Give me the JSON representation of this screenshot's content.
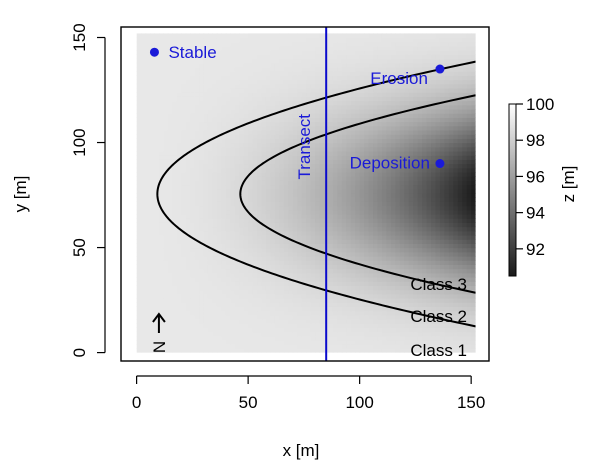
{
  "chart_data": {
    "type": "heatmap",
    "xlabel": "x [m]",
    "ylabel": "y [m]",
    "xlim": [
      -7,
      158
    ],
    "ylim": [
      -4,
      155
    ],
    "x_ticks": [
      0,
      50,
      100,
      150
    ],
    "y_ticks": [
      0,
      50,
      100,
      150
    ],
    "x_domain": [
      0,
      152
    ],
    "y_domain": [
      0,
      152
    ],
    "z_range": [
      90.5,
      100
    ],
    "colorbar": {
      "label": "z [m]",
      "ticks": [
        92,
        94,
        96,
        98,
        100
      ],
      "range": [
        90.5,
        100
      ],
      "low_color": "#1a1a1a",
      "high_color": "#ffffff"
    },
    "contours": [
      {
        "x_vertex": 9.3,
        "y_center": 75.5,
        "half_height_at_edge": 63,
        "label": "Class 2",
        "label_position": "bottom-right"
      },
      {
        "x_vertex": 46.5,
        "y_center": 75.5,
        "half_height_at_edge": 47,
        "label": "Class 3",
        "label_position": "bottom-right"
      }
    ],
    "class1_label": "Class 1",
    "transect": {
      "x": 85,
      "label": "Transect",
      "color": "#0a0acc"
    },
    "points": [
      {
        "label": "Stable",
        "x": 8,
        "y": 143
      },
      {
        "label": "Erosion",
        "x": 136,
        "y": 135
      },
      {
        "label": "Deposition",
        "x": 136,
        "y": 90
      }
    ],
    "north_arrow_label": "N",
    "point_color": "#1a1ad8"
  }
}
